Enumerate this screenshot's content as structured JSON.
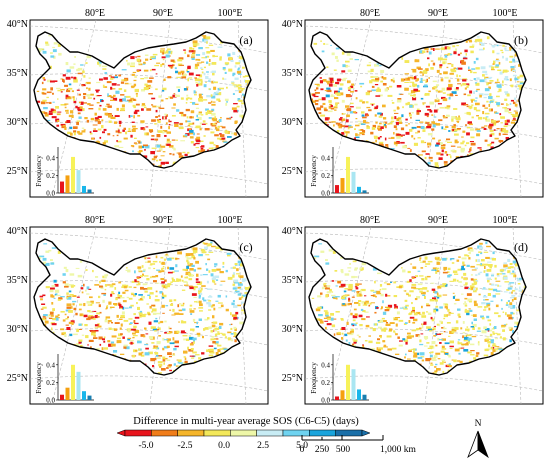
{
  "panels": [
    {
      "label": "(a)",
      "pattern": "a",
      "hist": [
        0.13,
        0.2,
        0.41,
        0.26,
        0.08,
        0.04
      ]
    },
    {
      "label": "(b)",
      "pattern": "b",
      "hist": [
        0.09,
        0.17,
        0.41,
        0.24,
        0.07,
        0.03
      ]
    },
    {
      "label": "(c)",
      "pattern": "c",
      "hist": [
        0.06,
        0.14,
        0.4,
        0.32,
        0.1,
        0.05
      ]
    },
    {
      "label": "(d)",
      "pattern": "d",
      "hist": [
        0.04,
        0.11,
        0.4,
        0.35,
        0.12,
        0.06
      ]
    }
  ],
  "axes": {
    "lon_labels": [
      "80°E",
      "90°E",
      "100°E"
    ],
    "lat_labels": [
      "40°N",
      "35°N",
      "30°N",
      "25°N"
    ]
  },
  "histogram": {
    "ylabel": "Frequency",
    "yticks": [
      "0.0",
      "0.2",
      "0.4"
    ],
    "colors": [
      "#e8141c",
      "#f5a00f",
      "#f7f25a",
      "#a9e6f2",
      "#19b6ea",
      "#1a7fb0"
    ]
  },
  "legend": {
    "title": "Difference in multi-year average SOS (C6-C5) (days)",
    "ticks": [
      "-5.0",
      "-2.5",
      "0.0",
      "2.5",
      "5.0"
    ],
    "colors": [
      "#e8141c",
      "#f07d1a",
      "#f5b52a",
      "#f3e85a",
      "#eef7a8",
      "#c8ecf4",
      "#6fd3f0",
      "#1aa4dc",
      "#1a6fa8"
    ]
  },
  "scalebar": {
    "ticks": [
      "0",
      "250",
      "500",
      "1,000 km"
    ]
  },
  "north": {
    "label": "N"
  }
}
